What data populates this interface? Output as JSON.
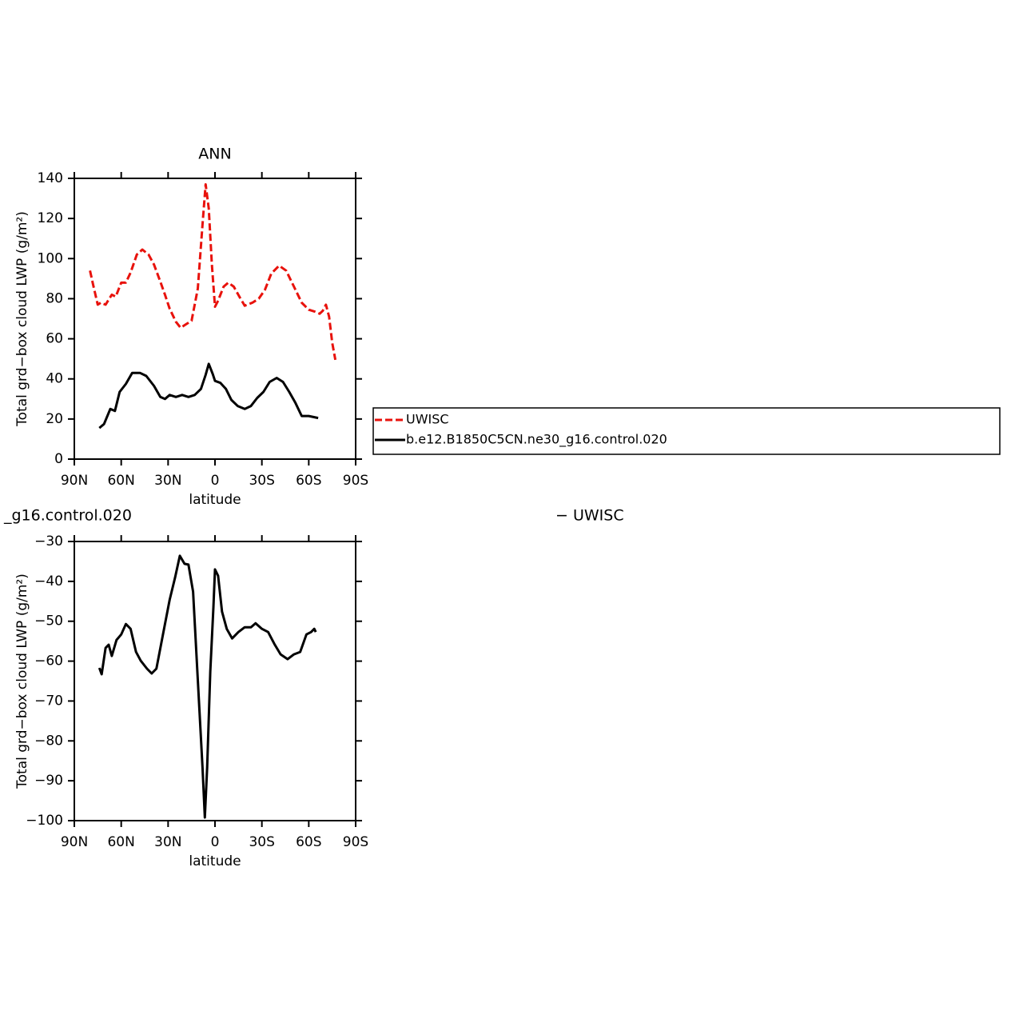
{
  "chart_data": [
    {
      "type": "line",
      "title": "ANN",
      "xlabel": "latitude",
      "ylabel": "Total grd−box cloud LWP (g/m²)",
      "xlim": [
        90,
        -90
      ],
      "xticks": [
        {
          "value": 90,
          "label": "90N"
        },
        {
          "value": 60,
          "label": "60N"
        },
        {
          "value": 30,
          "label": "30N"
        },
        0,
        {
          "value": -30,
          "label": "30S"
        },
        {
          "value": -60,
          "label": "60S"
        },
        {
          "value": -90,
          "label": "90S"
        }
      ],
      "ylim": [
        0,
        140
      ],
      "yticks": [
        0,
        20,
        40,
        60,
        80,
        100,
        120,
        140
      ],
      "series": [
        {
          "name": "UWISC",
          "color": "#e8120c",
          "line_style": "dashed",
          "x": [
            80,
            78,
            75,
            73,
            70,
            66,
            63.5,
            60,
            57,
            54,
            50,
            46.5,
            42.5,
            39,
            35,
            32,
            29,
            25,
            22,
            19,
            15,
            11,
            8,
            6,
            4,
            2,
            0,
            -2,
            -5.5,
            -8.5,
            -12,
            -16,
            -19,
            -24,
            -28,
            -32,
            -36,
            -41,
            -45.5,
            -50.5,
            -55.5,
            -60,
            -64,
            -67,
            -69,
            -71,
            -73,
            -75,
            -77
          ],
          "values": [
            94,
            87,
            77,
            78,
            77,
            82,
            81,
            88,
            88,
            93,
            102,
            104.5,
            102,
            97,
            88.5,
            82,
            75,
            68.5,
            65.5,
            67,
            69,
            85,
            117,
            137,
            125,
            97,
            76,
            79,
            86,
            88,
            86,
            80.5,
            76.5,
            78,
            80,
            84.5,
            92.5,
            96.5,
            94,
            86,
            78,
            74.5,
            73.5,
            72.5,
            74,
            77,
            71,
            58,
            49.5
          ]
        },
        {
          "name": "b.e12.B1850C5CN.ne30_g16.control.020",
          "color": "#000000",
          "line_style": "solid",
          "x": [
            74,
            71,
            67,
            64,
            61,
            57,
            53,
            48,
            44,
            39,
            35,
            32,
            29,
            25,
            21,
            17,
            13,
            9,
            6,
            4,
            1.5,
            0,
            -3.5,
            -7,
            -10.5,
            -14.5,
            -19,
            -23,
            -27,
            -31,
            -35,
            -39.5,
            -43.5,
            -47.5,
            -51.5,
            -55.5,
            -60,
            -63,
            -66
          ],
          "values": [
            15.5,
            17.5,
            25,
            24,
            33.5,
            37.5,
            43,
            43,
            41.5,
            36.5,
            31,
            30,
            32,
            31,
            32,
            31,
            32,
            35,
            42,
            47.5,
            42.5,
            39,
            38,
            35,
            29.5,
            26.5,
            25,
            26.5,
            30.5,
            33.5,
            38.5,
            40.5,
            38.5,
            33.5,
            28,
            21.5,
            21.5,
            21,
            20.5
          ]
        }
      ]
    },
    {
      "type": "line",
      "title_left": "_g16.control.020",
      "title_right": "− UWISC",
      "xlabel": "latitude",
      "ylabel": "Total grd−box cloud LWP (g/m²)",
      "xlim": [
        90,
        -90
      ],
      "xticks": [
        {
          "value": 90,
          "label": "90N"
        },
        {
          "value": 60,
          "label": "60N"
        },
        {
          "value": 30,
          "label": "30N"
        },
        0,
        {
          "value": -30,
          "label": "30S"
        },
        {
          "value": -60,
          "label": "60S"
        },
        {
          "value": -90,
          "label": "90S"
        }
      ],
      "ylim": [
        -100,
        -30
      ],
      "yticks": [
        {
          "value": -100,
          "label": "−100"
        },
        {
          "value": -90,
          "label": "−90"
        },
        {
          "value": -80,
          "label": "−80"
        },
        {
          "value": -70,
          "label": "−70"
        },
        {
          "value": -60,
          "label": "−60"
        },
        {
          "value": -50,
          "label": "−50"
        },
        {
          "value": -40,
          "label": "−40"
        },
        {
          "value": -30,
          "label": "−30"
        }
      ],
      "series": [
        {
          "color": "#000000",
          "line_style": "solid",
          "x": [
            74,
            72.5,
            70,
            68,
            66,
            63,
            60,
            57,
            54,
            50.5,
            47.5,
            43.5,
            40.5,
            37.5,
            33,
            29,
            25.5,
            22.5,
            19.5,
            17,
            14,
            11,
            8,
            6.5,
            5,
            3,
            1,
            0,
            -2,
            -4.5,
            -7.5,
            -11,
            -15,
            -19,
            -23,
            -26,
            -30,
            -34,
            -38,
            -42,
            -46.5,
            -50.5,
            -54.5,
            -58.5,
            -61.5,
            -63.5,
            -64.5
          ],
          "values": [
            -61.7,
            -63.3,
            -56.7,
            -55.9,
            -58.7,
            -54.7,
            -53.3,
            -50.7,
            -51.9,
            -57.7,
            -59.9,
            -61.9,
            -63.1,
            -61.9,
            -52.7,
            -44.6,
            -39,
            -33.6,
            -35.6,
            -35.8,
            -42.6,
            -64.7,
            -86.7,
            -99.2,
            -86.7,
            -62.7,
            -46.6,
            -37,
            -38.6,
            -47.6,
            -51.9,
            -54.3,
            -52.7,
            -51.5,
            -51.5,
            -50.5,
            -51.9,
            -52.7,
            -55.7,
            -58.3,
            -59.5,
            -58.3,
            -57.7,
            -53.3,
            -52.7,
            -51.9,
            -52.7
          ]
        }
      ]
    }
  ]
}
